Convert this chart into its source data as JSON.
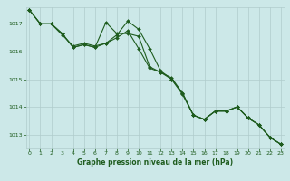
{
  "title": "Graphe pression niveau de la mer (hPa)",
  "bg_color": "#cce8e8",
  "grid_color": "#b0cccc",
  "line_color": "#1e5c1e",
  "x_ticks": [
    0,
    1,
    2,
    3,
    4,
    5,
    6,
    7,
    8,
    9,
    10,
    11,
    12,
    13,
    14,
    15,
    16,
    17,
    18,
    19,
    20,
    21,
    22,
    23
  ],
  "ylim": [
    1012.5,
    1017.6
  ],
  "yticks": [
    1013,
    1014,
    1015,
    1016,
    1017
  ],
  "series": [
    [
      1017.5,
      1017.0,
      1017.0,
      1016.65,
      1016.15,
      1016.25,
      1016.15,
      1016.3,
      1016.5,
      1016.75,
      1016.1,
      1015.4,
      1015.25,
      1015.0,
      1014.45,
      1013.7,
      1013.55,
      1013.85,
      1013.85,
      1014.0,
      1013.6,
      1013.35,
      1012.9,
      1012.65
    ],
    [
      1017.5,
      1017.0,
      1017.0,
      1016.65,
      1016.15,
      1016.25,
      1016.15,
      1017.05,
      1016.65,
      1016.65,
      1016.55,
      1015.45,
      1015.25,
      1015.05,
      1014.5,
      1013.7,
      1013.55,
      1013.85,
      1013.85,
      1014.0,
      1013.6,
      1013.35,
      1012.9,
      1012.65
    ],
    [
      1017.5,
      1017.0,
      1017.0,
      1016.6,
      1016.2,
      1016.3,
      1016.2,
      1016.3,
      1016.6,
      1017.1,
      1016.8,
      1016.1,
      1015.3,
      1015.0,
      1014.5,
      1013.7,
      1013.55,
      1013.85,
      1013.85,
      1014.0,
      1013.6,
      1013.35,
      1012.9,
      1012.65
    ]
  ]
}
